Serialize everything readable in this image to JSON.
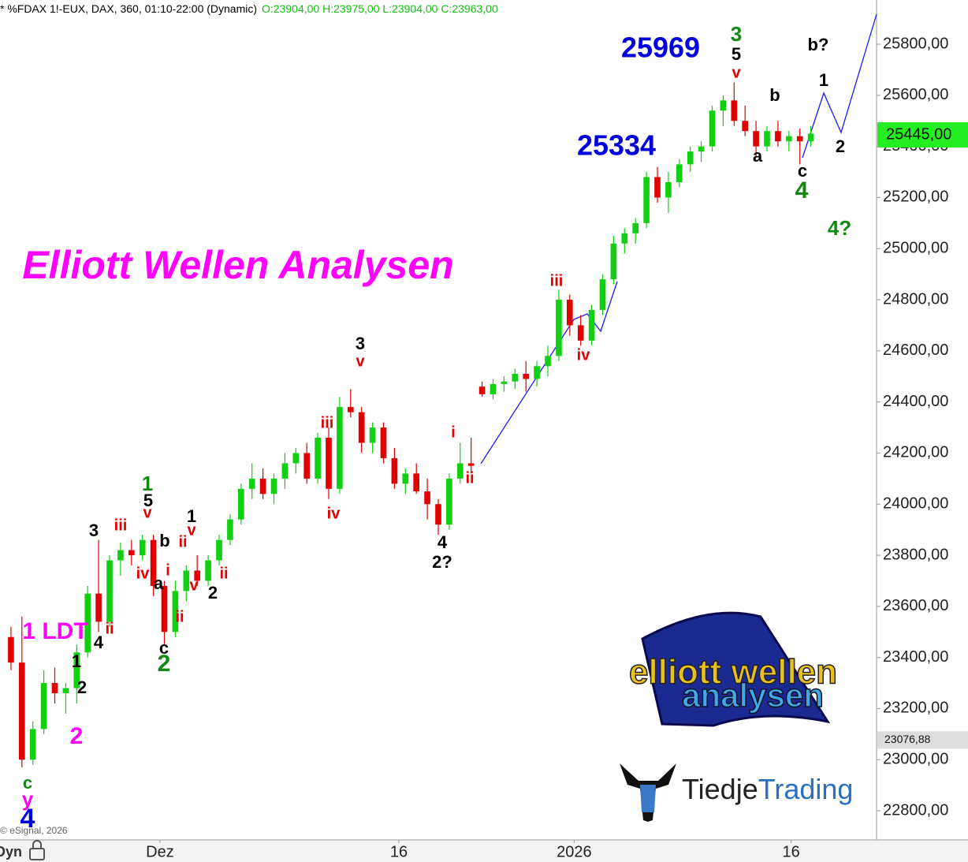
{
  "chart_data": {
    "type": "candlestick",
    "title": "* %FDAX 1!-EUX, DAX, 360, 01:10-22:00 (Dynamic)",
    "subtitle": "O:23904,00 H:23975,00 L:23904,00 C:23963,00",
    "x": [
      0,
      1,
      2,
      3,
      4,
      5,
      6,
      7,
      8,
      9,
      10,
      11,
      12,
      13,
      14,
      15,
      16,
      17,
      18,
      19,
      20,
      21,
      22,
      23,
      24,
      25,
      26,
      27,
      28,
      29,
      30,
      31,
      32,
      33,
      34,
      35,
      36,
      37,
      38,
      39,
      40,
      41,
      42,
      43,
      44,
      45,
      46,
      47,
      48,
      49,
      50,
      51,
      52,
      53,
      54,
      55,
      56,
      57,
      58,
      59,
      60,
      61,
      62,
      63,
      64,
      65,
      66,
      67,
      68,
      69,
      70,
      71,
      72,
      73
    ],
    "open": [
      23480,
      23380,
      23000,
      23120,
      23300,
      23260,
      23280,
      23420,
      23650,
      23540,
      23780,
      23820,
      23800,
      23860,
      23680,
      23500,
      23660,
      23740,
      23700,
      23780,
      23860,
      23940,
      24060,
      24100,
      24040,
      24100,
      24160,
      24200,
      24100,
      24260,
      24060,
      24380,
      24360,
      24240,
      24300,
      24180,
      24080,
      24120,
      24050,
      24000,
      23920,
      24100,
      24160,
      24460,
      24430,
      24470,
      24480,
      24510,
      24490,
      24540,
      24580,
      24800,
      24700,
      24640,
      24760,
      24880,
      25020,
      25060,
      25100,
      25280,
      25200,
      25260,
      25330,
      25380,
      25400,
      25540,
      25580,
      25500,
      25460,
      25400,
      25460,
      25420,
      25440,
      25420
    ],
    "high": [
      23520,
      23560,
      23150,
      23350,
      23360,
      23300,
      23450,
      23680,
      23860,
      23800,
      23850,
      23860,
      23880,
      23880,
      23700,
      23700,
      23760,
      23800,
      23800,
      23880,
      23960,
      24080,
      24160,
      24140,
      24120,
      24200,
      24220,
      24240,
      24280,
      24300,
      24420,
      24450,
      24380,
      24320,
      24320,
      24220,
      24140,
      24160,
      24100,
      24020,
      24120,
      24240,
      24260,
      24480,
      24490,
      24500,
      24530,
      24560,
      24560,
      24620,
      24840,
      24820,
      24740,
      24780,
      24900,
      25050,
      25080,
      25120,
      25300,
      25320,
      25300,
      25350,
      25400,
      25420,
      25560,
      25600,
      25650,
      25560,
      25500,
      25480,
      25500,
      25460,
      25470,
      25480
    ],
    "low": [
      23350,
      22970,
      22980,
      23100,
      23220,
      23180,
      23220,
      23400,
      23500,
      23520,
      23720,
      23760,
      23780,
      23640,
      23450,
      23480,
      23620,
      23680,
      23680,
      23760,
      23840,
      23920,
      24020,
      24020,
      24000,
      24060,
      24120,
      24080,
      24080,
      24020,
      24040,
      24340,
      24200,
      24200,
      24160,
      24060,
      24040,
      24040,
      23940,
      23880,
      23900,
      24080,
      24120,
      24420,
      24410,
      24440,
      24450,
      24440,
      24460,
      24500,
      24560,
      24660,
      24620,
      24620,
      24740,
      24860,
      24980,
      25020,
      25080,
      25180,
      25140,
      25240,
      25300,
      25340,
      25380,
      25480,
      25480,
      25440,
      25360,
      25380,
      25400,
      25380,
      25330,
      25400
    ],
    "close": [
      23380,
      23000,
      23120,
      23300,
      23260,
      23280,
      23420,
      23650,
      23540,
      23780,
      23820,
      23800,
      23860,
      23680,
      23500,
      23660,
      23740,
      23700,
      23780,
      23860,
      23940,
      24060,
      24100,
      24040,
      24100,
      24160,
      24200,
      24100,
      24260,
      24060,
      24380,
      24360,
      24240,
      24300,
      24180,
      24080,
      24120,
      24050,
      24000,
      23920,
      24100,
      24160,
      24150,
      24430,
      24470,
      24480,
      24510,
      24490,
      24540,
      24580,
      24800,
      24700,
      24640,
      24760,
      24880,
      25020,
      25060,
      25100,
      25280,
      25200,
      25260,
      25330,
      25380,
      25400,
      25540,
      25580,
      25500,
      25460,
      25400,
      25460,
      25420,
      25440,
      25420,
      25450
    ],
    "up_color": "#11d011",
    "down_color": "#e00000",
    "xlim": [
      -1,
      79
    ],
    "xticks": [
      {
        "value": 13.6,
        "label": "Dez"
      },
      {
        "value": 35.4,
        "label": "16"
      },
      {
        "value": 51.4,
        "label": "2026"
      },
      {
        "value": 71.2,
        "label": "16"
      }
    ],
    "ylim": [
      22686,
      25973
    ],
    "yticks": [
      {
        "value": 22800,
        "label": "22800,00"
      },
      {
        "value": 23000,
        "label": "23000,00"
      },
      {
        "value": 23200,
        "label": "23200,00"
      },
      {
        "value": 23400,
        "label": "23400,00"
      },
      {
        "value": 23600,
        "label": "23600,00"
      },
      {
        "value": 23800,
        "label": "23800,00"
      },
      {
        "value": 24000,
        "label": "24000,00"
      },
      {
        "value": 24200,
        "label": "24200,00"
      },
      {
        "value": 24400,
        "label": "24400,00"
      },
      {
        "value": 24600,
        "label": "24600,00"
      },
      {
        "value": 24800,
        "label": "24800,00"
      },
      {
        "value": 25000,
        "label": "25000,00"
      },
      {
        "value": 25200,
        "label": "25200,00"
      },
      {
        "value": 25400,
        "label": "25400,00"
      },
      {
        "value": 25600,
        "label": "25600,00"
      },
      {
        "value": 25800,
        "label": "25800,00"
      }
    ],
    "price_markers": [
      {
        "value": 25445,
        "label": "25445,00",
        "color": "#22ee22"
      },
      {
        "value": 23076.88,
        "label": "23076,88",
        "color": "#dddddd"
      }
    ],
    "annotations": [
      {
        "text": "25969",
        "color": "#0000dd"
      },
      {
        "text": "25334",
        "color": "#0000dd"
      },
      {
        "text": "3",
        "color": "#118811"
      },
      {
        "text": "5",
        "color": "#000000"
      },
      {
        "text": "v",
        "color": "#e00000"
      },
      {
        "text": "b?",
        "color": "#000000"
      },
      {
        "text": "1",
        "color": "#000000"
      },
      {
        "text": "b",
        "color": "#000000"
      },
      {
        "text": "2",
        "color": "#000000"
      },
      {
        "text": "a",
        "color": "#000000"
      },
      {
        "text": "c",
        "color": "#000000"
      },
      {
        "text": "4",
        "color": "#118811"
      },
      {
        "text": "4?",
        "color": "#118811"
      },
      {
        "text": "Elliott Wellen Analysen",
        "color": "#ff00ff"
      },
      {
        "text": "iii",
        "color": "#e00000"
      },
      {
        "text": "iv",
        "color": "#e00000"
      },
      {
        "text": "3",
        "color": "#000000"
      },
      {
        "text": "v",
        "color": "#e00000"
      },
      {
        "text": "iii",
        "color": "#e00000"
      },
      {
        "text": "iv",
        "color": "#e00000"
      },
      {
        "text": "i",
        "color": "#e00000"
      },
      {
        "text": "ii",
        "color": "#e00000"
      },
      {
        "text": "4",
        "color": "#000000"
      },
      {
        "text": "2?",
        "color": "#000000"
      },
      {
        "text": "1",
        "color": "#118811"
      },
      {
        "text": "5",
        "color": "#000000"
      },
      {
        "text": "v",
        "color": "#e00000"
      },
      {
        "text": "iii",
        "color": "#e00000"
      },
      {
        "text": "3",
        "color": "#000000"
      },
      {
        "text": "b",
        "color": "#000000"
      },
      {
        "text": "iv",
        "color": "#e00000"
      },
      {
        "text": "a",
        "color": "#000000"
      },
      {
        "text": "i",
        "color": "#e00000"
      },
      {
        "text": "1",
        "color": "#000000"
      },
      {
        "text": "v",
        "color": "#e00000"
      },
      {
        "text": "ii",
        "color": "#e00000"
      },
      {
        "text": "v",
        "color": "#e00000"
      },
      {
        "text": "ii",
        "color": "#e00000"
      },
      {
        "text": "2",
        "color": "#000000"
      },
      {
        "text": "ii",
        "color": "#e00000"
      },
      {
        "text": "c",
        "color": "#000000"
      },
      {
        "text": "2",
        "color": "#118811"
      },
      {
        "text": "4",
        "color": "#000000"
      },
      {
        "text": "ii",
        "color": "#e00000"
      },
      {
        "text": "1 LDT",
        "color": "#ff00ff"
      },
      {
        "text": "1",
        "color": "#000000"
      },
      {
        "text": "2",
        "color": "#000000"
      },
      {
        "text": "2",
        "color": "#ff00ff"
      },
      {
        "text": "c",
        "color": "#118811"
      },
      {
        "text": "y",
        "color": "#ff00ff"
      },
      {
        "text": "4",
        "color": "#0000dd"
      }
    ],
    "copyright": "© eSignal, 2026",
    "x_axis_note": "Dyn",
    "logo_text": [
      "elliott wellen",
      "analysen"
    ],
    "brand": [
      "Tiedje",
      "Trading"
    ]
  }
}
